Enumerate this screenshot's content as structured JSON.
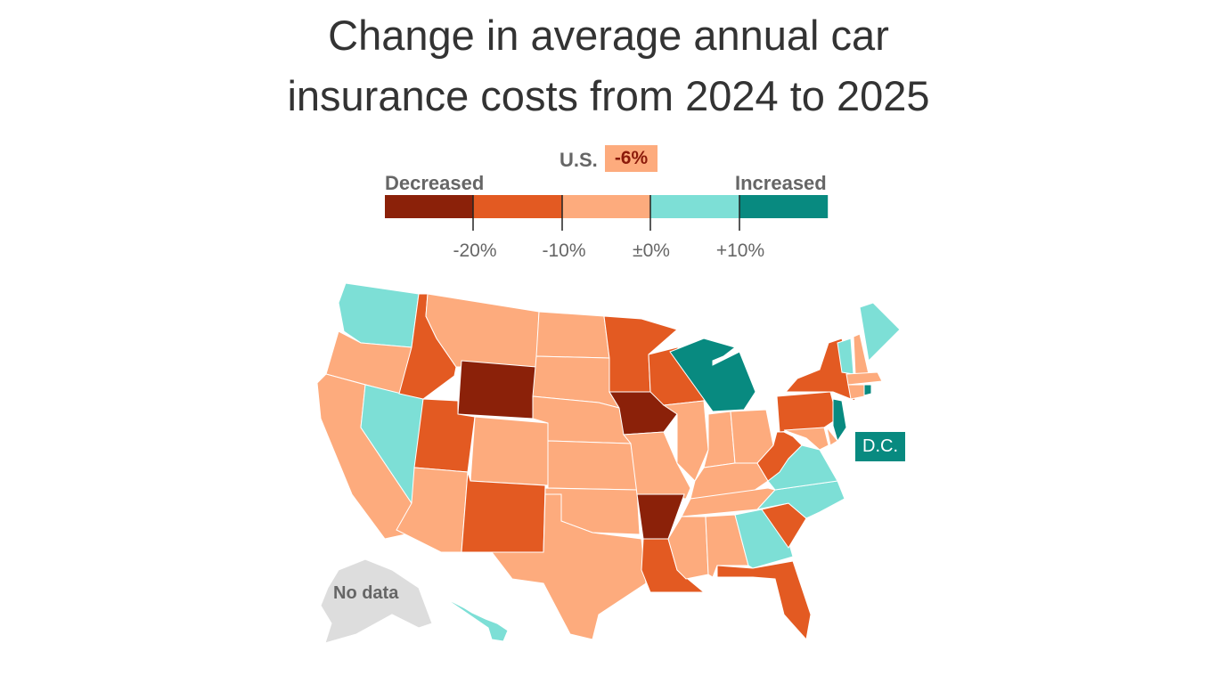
{
  "title": {
    "line1": "Change in average annual car",
    "line2": "insurance costs from 2024 to 2025"
  },
  "us_summary": {
    "label": "U.S.",
    "value": "-6%",
    "bin": 2
  },
  "legend": {
    "left_label": "Decreased",
    "right_label": "Increased",
    "colors": [
      "#8b2109",
      "#e35a22",
      "#fdab7d",
      "#7ddfd6",
      "#088a80"
    ],
    "ticks": [
      "-20%",
      "-10%",
      "±0%",
      "+10%"
    ]
  },
  "no_data": {
    "label": "No data",
    "color": "#dddddd"
  },
  "dc": {
    "label": "D.C.",
    "bin": 4
  },
  "states": {
    "WA": 3,
    "OR": 2,
    "CA": 2,
    "NV": 3,
    "ID": 1,
    "MT": 2,
    "WY": 0,
    "UT": 1,
    "AZ": 2,
    "CO": 2,
    "NM": 1,
    "ND": 2,
    "SD": 2,
    "NE": 2,
    "KS": 2,
    "OK": 2,
    "TX": 2,
    "MN": 1,
    "IA": 0,
    "MO": 2,
    "AR": 0,
    "LA": 1,
    "WI": 1,
    "IL": 2,
    "MI": 4,
    "IN": 2,
    "OH": 2,
    "KY": 2,
    "TN": 2,
    "MS": 2,
    "AL": 2,
    "GA": 3,
    "FL": 1,
    "SC": 1,
    "NC": 3,
    "VA": 3,
    "WV": 1,
    "MD": 2,
    "DE": 2,
    "PA": 1,
    "NJ": 4,
    "NY": 1,
    "CT": 2,
    "RI": 4,
    "MA": 2,
    "VT": 3,
    "NH": 2,
    "ME": 3,
    "HI": 3,
    "AK": null
  }
}
